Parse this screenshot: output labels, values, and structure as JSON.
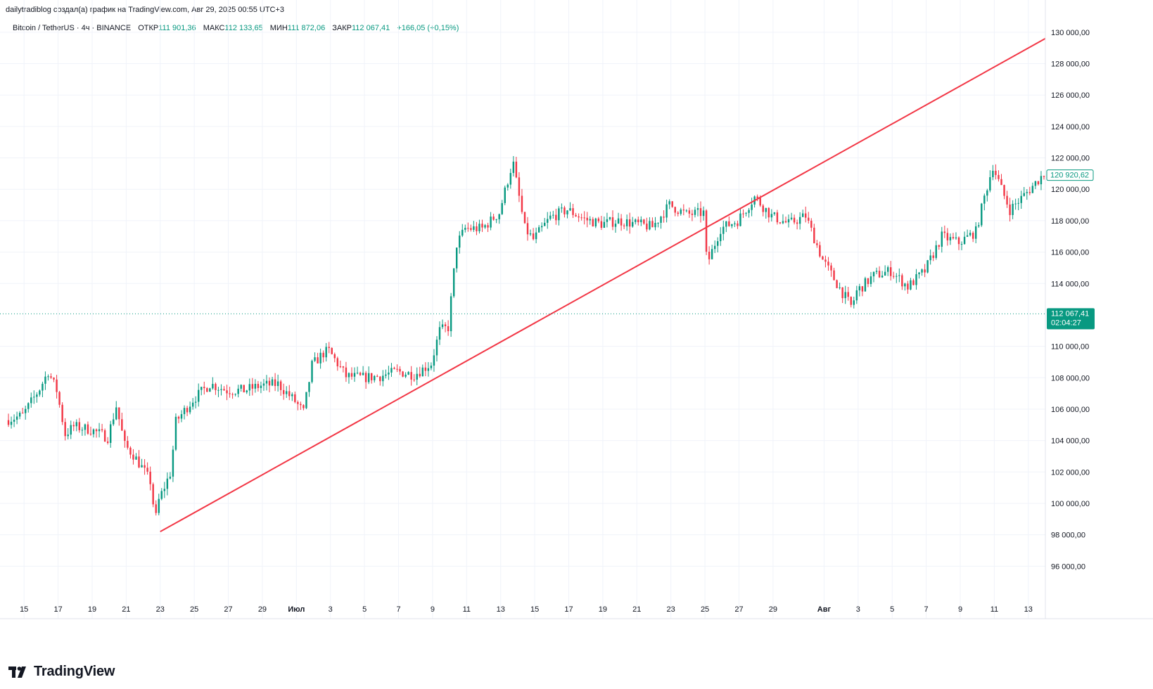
{
  "header": {
    "attribution": "dailytradiblog создал(а) график на TradingView.com, Авг 29, 2025 00:55 UTC+3"
  },
  "legend": {
    "symbol": "Bitcoin / TetherUS · 4ч · BINANCE",
    "open_label": "ОТКР",
    "open_value": "111 901,36",
    "high_label": "МАКС",
    "high_value": "112 133,65",
    "low_label": "МИН",
    "low_value": "111 872,06",
    "close_label": "ЗАКР",
    "close_value": "112 067,41",
    "change": "+166,05 (+0,15%)"
  },
  "price_tag": {
    "price": "112 067,41",
    "countdown": "02:04:27"
  },
  "marker_tag": {
    "price": "120 920,62"
  },
  "logo": {
    "text": "TradingView"
  },
  "colors": {
    "up": "#089981",
    "down": "#F23645",
    "trendline": "#F23645",
    "grid": "#F0F3FA",
    "text": "#131722"
  },
  "chart_data": {
    "type": "candlestick",
    "symbol": "BTCUSDT",
    "timeframe": "4h",
    "x_range": [
      "2025-06-14",
      "2025-08-14"
    ],
    "ylim": [
      94000,
      130800
    ],
    "grid": true,
    "y_ticks": [
      {
        "v": 96000,
        "label": "96 000,00"
      },
      {
        "v": 98000,
        "label": "98 000,00"
      },
      {
        "v": 100000,
        "label": "100 000,00"
      },
      {
        "v": 102000,
        "label": "102 000,00"
      },
      {
        "v": 104000,
        "label": "104 000,00"
      },
      {
        "v": 106000,
        "label": "106 000,00"
      },
      {
        "v": 108000,
        "label": "108 000,00"
      },
      {
        "v": 110000,
        "label": "110 000,00"
      },
      {
        "v": 114000,
        "label": "114 000,00"
      },
      {
        "v": 116000,
        "label": "116 000,00"
      },
      {
        "v": 118000,
        "label": "118 000,00"
      },
      {
        "v": 120000,
        "label": "120 000,00"
      },
      {
        "v": 122000,
        "label": "122 000,00"
      },
      {
        "v": 124000,
        "label": "124 000,00"
      },
      {
        "v": 126000,
        "label": "126 000,00"
      },
      {
        "v": 128000,
        "label": "128 000,00"
      },
      {
        "v": 130000,
        "label": "130 000,00"
      }
    ],
    "x_ticks": [
      {
        "d": "2025-06-15",
        "label": "15"
      },
      {
        "d": "2025-06-17",
        "label": "17"
      },
      {
        "d": "2025-06-19",
        "label": "19"
      },
      {
        "d": "2025-06-21",
        "label": "21"
      },
      {
        "d": "2025-06-23",
        "label": "23"
      },
      {
        "d": "2025-06-25",
        "label": "25"
      },
      {
        "d": "2025-06-27",
        "label": "27"
      },
      {
        "d": "2025-06-29",
        "label": "29"
      },
      {
        "d": "2025-07-01",
        "label": "Июл",
        "month": true
      },
      {
        "d": "2025-07-03",
        "label": "3"
      },
      {
        "d": "2025-07-05",
        "label": "5"
      },
      {
        "d": "2025-07-07",
        "label": "7"
      },
      {
        "d": "2025-07-09",
        "label": "9"
      },
      {
        "d": "2025-07-11",
        "label": "11"
      },
      {
        "d": "2025-07-13",
        "label": "13"
      },
      {
        "d": "2025-07-15",
        "label": "15"
      },
      {
        "d": "2025-07-17",
        "label": "17"
      },
      {
        "d": "2025-07-19",
        "label": "19"
      },
      {
        "d": "2025-07-21",
        "label": "21"
      },
      {
        "d": "2025-07-23",
        "label": "23"
      },
      {
        "d": "2025-07-25",
        "label": "25"
      },
      {
        "d": "2025-07-27",
        "label": "27"
      },
      {
        "d": "2025-07-29",
        "label": "29"
      },
      {
        "d": "2025-08-01",
        "label": "Авг",
        "month": true
      },
      {
        "d": "2025-08-03",
        "label": "3"
      },
      {
        "d": "2025-08-05",
        "label": "5"
      },
      {
        "d": "2025-08-07",
        "label": "7"
      },
      {
        "d": "2025-08-09",
        "label": "9"
      },
      {
        "d": "2025-08-11",
        "label": "11"
      },
      {
        "d": "2025-08-13",
        "label": "13"
      }
    ],
    "trendline": {
      "from": [
        "2025-06-23",
        98200
      ],
      "to": [
        "2025-08-14",
        129600
      ]
    },
    "current_price": 112067.41,
    "marker_price": 120920.62,
    "price_path": [
      [
        "2025-06-14",
        105300
      ],
      [
        "2025-06-15",
        105600
      ],
      [
        "2025-06-16",
        107300
      ],
      [
        "2025-06-16.5",
        108400
      ],
      [
        "2025-06-17",
        107200
      ],
      [
        "2025-06-17.5",
        104400
      ],
      [
        "2025-06-18",
        104900
      ],
      [
        "2025-06-19",
        104700
      ],
      [
        "2025-06-20",
        104200
      ],
      [
        "2025-06-20.5",
        106200
      ],
      [
        "2025-06-21",
        103700
      ],
      [
        "2025-06-21.5",
        103100
      ],
      [
        "2025-06-22",
        102300
      ],
      [
        "2025-06-22.5",
        101400
      ],
      [
        "2025-06-22.8",
        98900
      ],
      [
        "2025-06-23",
        100200
      ],
      [
        "2025-06-23.7",
        102000
      ],
      [
        "2025-06-24",
        105200
      ],
      [
        "2025-06-25",
        106600
      ],
      [
        "2025-06-26",
        107600
      ],
      [
        "2025-06-27",
        107200
      ],
      [
        "2025-06-28",
        107200
      ],
      [
        "2025-06-29",
        107500
      ],
      [
        "2025-06-30",
        107600
      ],
      [
        "2025-07-01",
        106500
      ],
      [
        "2025-07-01.5",
        105800
      ],
      [
        "2025-07-02",
        108800
      ],
      [
        "2025-07-02.7",
        109600
      ],
      [
        "2025-07-03",
        109700
      ],
      [
        "2025-07-04",
        108100
      ],
      [
        "2025-07-05",
        108000
      ],
      [
        "2025-07-06",
        108100
      ],
      [
        "2025-07-07",
        108400
      ],
      [
        "2025-07-08",
        108200
      ],
      [
        "2025-07-09",
        108900
      ],
      [
        "2025-07-09.5",
        111000
      ],
      [
        "2025-07-10",
        111200
      ],
      [
        "2025-07-10.5",
        116500
      ],
      [
        "2025-07-11",
        117500
      ],
      [
        "2025-07-12",
        117500
      ],
      [
        "2025-07-13",
        118500
      ],
      [
        "2025-07-13.8",
        121800
      ],
      [
        "2025-07-14",
        120500
      ],
      [
        "2025-07-14.5",
        117500
      ],
      [
        "2025-07-15",
        116800
      ],
      [
        "2025-07-16",
        118200
      ],
      [
        "2025-07-17",
        118700
      ],
      [
        "2025-07-18",
        118100
      ],
      [
        "2025-07-19",
        117800
      ],
      [
        "2025-07-20",
        118000
      ],
      [
        "2025-07-21",
        117800
      ],
      [
        "2025-07-22",
        117600
      ],
      [
        "2025-07-23",
        119000
      ],
      [
        "2025-07-24",
        118400
      ],
      [
        "2025-07-25",
        118500
      ],
      [
        "2025-07-25.2",
        115200
      ],
      [
        "2025-07-26",
        117500
      ],
      [
        "2025-07-27",
        118000
      ],
      [
        "2025-07-28",
        119500
      ],
      [
        "2025-07-29",
        118300
      ],
      [
        "2025-07-30",
        117800
      ],
      [
        "2025-07-31",
        118300
      ],
      [
        "2025-08-01",
        115500
      ],
      [
        "2025-08-02",
        113700
      ],
      [
        "2025-08-02.7",
        112500
      ],
      [
        "2025-08-03",
        113500
      ],
      [
        "2025-08-04",
        114500
      ],
      [
        "2025-08-05",
        114800
      ],
      [
        "2025-08-06",
        113800
      ],
      [
        "2025-08-07",
        114800
      ],
      [
        "2025-08-08",
        117000
      ],
      [
        "2025-08-09",
        116600
      ],
      [
        "2025-08-10",
        117300
      ],
      [
        "2025-08-10.5",
        119500
      ],
      [
        "2025-08-11",
        121500
      ],
      [
        "2025-08-11.5",
        120000
      ],
      [
        "2025-08-12",
        118700
      ],
      [
        "2025-08-13",
        119800
      ],
      [
        "2025-08-14",
        121000
      ]
    ]
  }
}
